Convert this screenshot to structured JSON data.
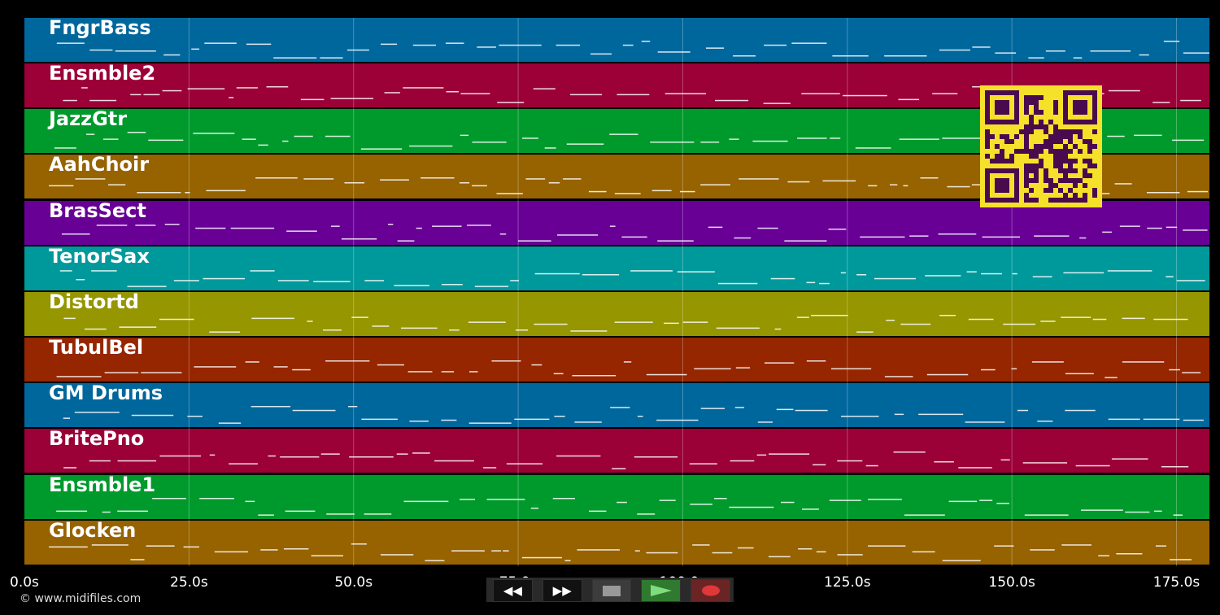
{
  "piano_roll": {
    "duration_seconds": 180,
    "tracks": [
      {
        "name": "FngrBass",
        "color": "#00679c"
      },
      {
        "name": "Ensmble2",
        "color": "#9b0037"
      },
      {
        "name": "JazzGtr",
        "color": "#009a2c"
      },
      {
        "name": "AahChoir",
        "color": "#966300"
      },
      {
        "name": "BrasSect",
        "color": "#680096"
      },
      {
        "name": "TenorSax",
        "color": "#00999b"
      },
      {
        "name": "Distortd",
        "color": "#969600"
      },
      {
        "name": "TubulBel",
        "color": "#952600"
      },
      {
        "name": "GM Drums",
        "color": "#00679c"
      },
      {
        "name": "BritePno",
        "color": "#9b0037"
      },
      {
        "name": "Ensmble1",
        "color": "#009a2c"
      },
      {
        "name": "Glocken",
        "color": "#966300"
      }
    ]
  },
  "time_axis": {
    "ticks": [
      {
        "seconds": 0,
        "label": "0.0s"
      },
      {
        "seconds": 25,
        "label": "25.0s"
      },
      {
        "seconds": 50,
        "label": "50.0s"
      },
      {
        "seconds": 75,
        "label": "75.0s"
      },
      {
        "seconds": 100,
        "label": "100.0s"
      },
      {
        "seconds": 125,
        "label": "125.0s"
      },
      {
        "seconds": 150,
        "label": "150.0s"
      },
      {
        "seconds": 175,
        "label": "175.0s"
      }
    ]
  },
  "footer": {
    "copyright": "© www.midifiles.com"
  },
  "transport": {
    "rewind_icon": "rewind-icon",
    "forward_icon": "fast-forward-icon",
    "stop_icon": "stop-icon",
    "play_icon": "play-icon",
    "record_icon": "record-icon",
    "play_color": "#7fdc7f",
    "record_color": "#e03838"
  },
  "overlay": {
    "qr_colors": {
      "fg": "#4a0a4e",
      "bg": "#f5e12a"
    }
  }
}
